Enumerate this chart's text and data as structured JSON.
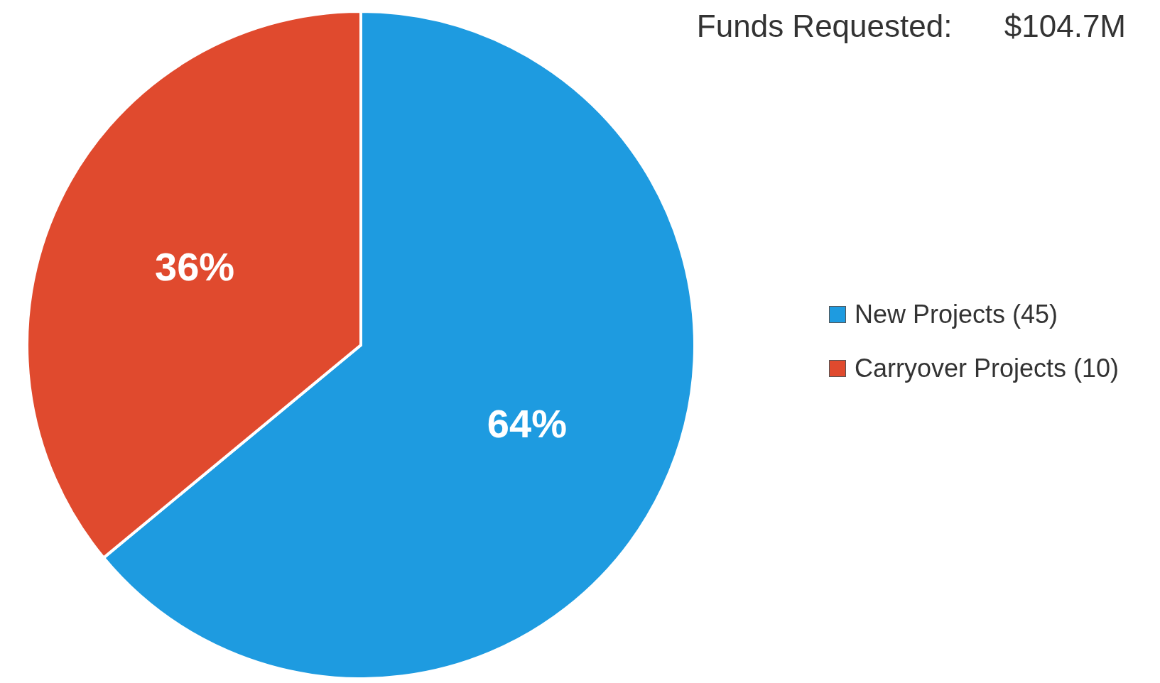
{
  "chart_data": {
    "type": "pie",
    "title": "Funds Requested:      $104.7M",
    "categories": [
      "New Projects (45)",
      "Carryover Projects (10)"
    ],
    "values": [
      64,
      36
    ],
    "colors": [
      "#1e9be0",
      "#e04a2e"
    ],
    "value_labels": [
      "64%",
      "36%"
    ],
    "legend": "right"
  }
}
